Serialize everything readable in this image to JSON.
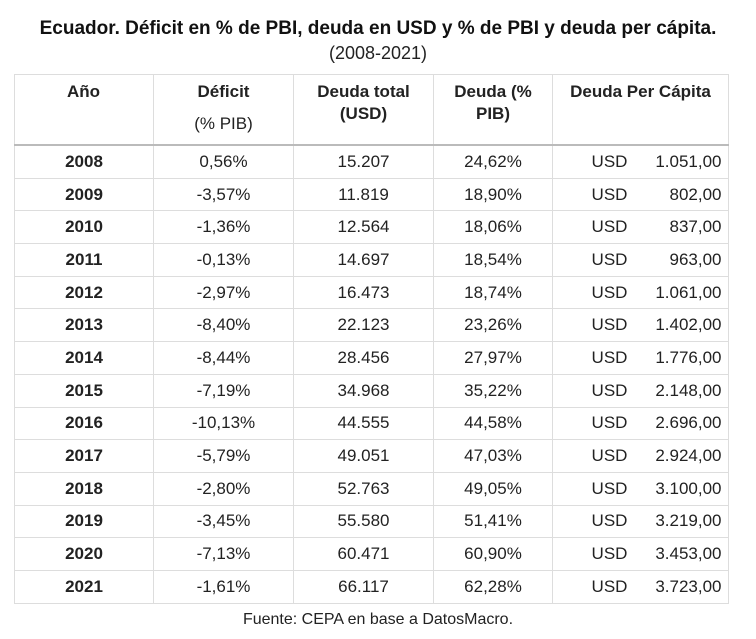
{
  "title": "Ecuador. Déficit en % de PBI, deuda en USD y % de PBI y deuda per cápita.",
  "subtitle": "(2008-2021)",
  "columns": {
    "year": "Año",
    "deficit_line1": "Déficit",
    "deficit_line2": "(% PIB)",
    "debt_total_line1": "Deuda total",
    "debt_total_line2": "(USD)",
    "debt_pct_line1": "Deuda (%",
    "debt_pct_line2": "PIB)",
    "per_capita": "Deuda Per Cápita"
  },
  "currency": "USD",
  "rows": [
    {
      "year": "2008",
      "deficit": "0,56%",
      "debt_total": "15.207",
      "debt_pct": "24,62%",
      "per_capita": "1.051,00"
    },
    {
      "year": "2009",
      "deficit": "-3,57%",
      "debt_total": "11.819",
      "debt_pct": "18,90%",
      "per_capita": "802,00"
    },
    {
      "year": "2010",
      "deficit": "-1,36%",
      "debt_total": "12.564",
      "debt_pct": "18,06%",
      "per_capita": "837,00"
    },
    {
      "year": "2011",
      "deficit": "-0,13%",
      "debt_total": "14.697",
      "debt_pct": "18,54%",
      "per_capita": "963,00"
    },
    {
      "year": "2012",
      "deficit": "-2,97%",
      "debt_total": "16.473",
      "debt_pct": "18,74%",
      "per_capita": "1.061,00"
    },
    {
      "year": "2013",
      "deficit": "-8,40%",
      "debt_total": "22.123",
      "debt_pct": "23,26%",
      "per_capita": "1.402,00"
    },
    {
      "year": "2014",
      "deficit": "-8,44%",
      "debt_total": "28.456",
      "debt_pct": "27,97%",
      "per_capita": "1.776,00"
    },
    {
      "year": "2015",
      "deficit": "-7,19%",
      "debt_total": "34.968",
      "debt_pct": "35,22%",
      "per_capita": "2.148,00"
    },
    {
      "year": "2016",
      "deficit": "-10,13%",
      "debt_total": "44.555",
      "debt_pct": "44,58%",
      "per_capita": "2.696,00"
    },
    {
      "year": "2017",
      "deficit": "-5,79%",
      "debt_total": "49.051",
      "debt_pct": "47,03%",
      "per_capita": "2.924,00"
    },
    {
      "year": "2018",
      "deficit": "-2,80%",
      "debt_total": "52.763",
      "debt_pct": "49,05%",
      "per_capita": "3.100,00"
    },
    {
      "year": "2019",
      "deficit": "-3,45%",
      "debt_total": "55.580",
      "debt_pct": "51,41%",
      "per_capita": "3.219,00"
    },
    {
      "year": "2020",
      "deficit": "-7,13%",
      "debt_total": "60.471",
      "debt_pct": "60,90%",
      "per_capita": "3.453,00"
    },
    {
      "year": "2021",
      "deficit": "-1,61%",
      "debt_total": "66.117",
      "debt_pct": "62,28%",
      "per_capita": "3.723,00"
    }
  ],
  "source": "Fuente: CEPA en base a DatosMacro."
}
